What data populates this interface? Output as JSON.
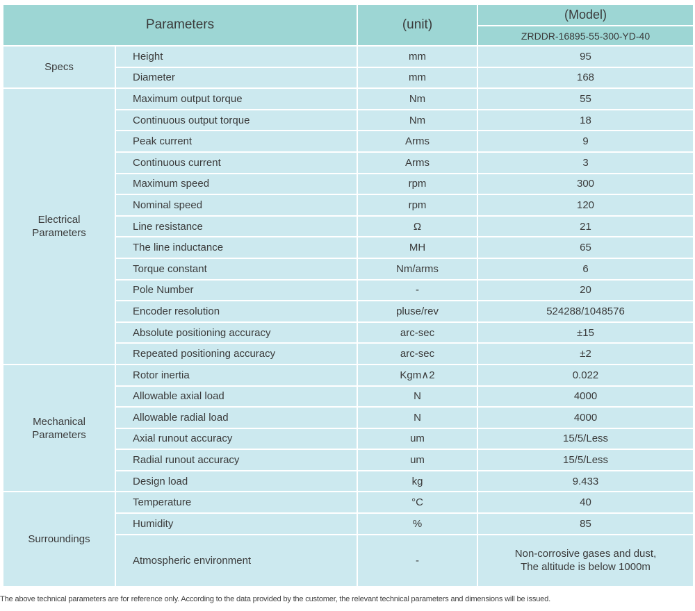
{
  "header": {
    "parameters": "Parameters",
    "unit": "(unit)",
    "model_label": "(Model)",
    "model": "ZRDDR-16895-55-300-YD-40"
  },
  "groups": [
    {
      "name": [
        "Specs"
      ],
      "rows": [
        {
          "parameter": "Height",
          "unit": "mm",
          "value": [
            "95"
          ]
        },
        {
          "parameter": "Diameter",
          "unit": "mm",
          "value": [
            "168"
          ]
        }
      ]
    },
    {
      "name": [
        "Electrical",
        "Parameters"
      ],
      "rows": [
        {
          "parameter": "Maximum output torque",
          "unit": "Nm",
          "value": [
            "55"
          ]
        },
        {
          "parameter": "Continuous output torque",
          "unit": "Nm",
          "value": [
            "18"
          ]
        },
        {
          "parameter": "Peak current",
          "unit": "Arms",
          "value": [
            "9"
          ]
        },
        {
          "parameter": "Continuous current",
          "unit": "Arms",
          "value": [
            "3"
          ]
        },
        {
          "parameter": "Maximum speed",
          "unit": "rpm",
          "value": [
            "300"
          ]
        },
        {
          "parameter": "Nominal speed",
          "unit": "rpm",
          "value": [
            "120"
          ]
        },
        {
          "parameter": "Line resistance",
          "unit": "Ω",
          "value": [
            "21"
          ]
        },
        {
          "parameter": "The line inductance",
          "unit": "MH",
          "value": [
            "65"
          ]
        },
        {
          "parameter": "Torque constant",
          "unit": "Nm/arms",
          "value": [
            "6"
          ]
        },
        {
          "parameter": "Pole Number",
          "unit": "-",
          "value": [
            "20"
          ]
        },
        {
          "parameter": "Encoder resolution",
          "unit": "pluse/rev",
          "value": [
            "524288/1048576"
          ]
        },
        {
          "parameter": "Absolute positioning accuracy",
          "unit": "arc-sec",
          "value": [
            "±15"
          ]
        },
        {
          "parameter": "Repeated positioning accuracy",
          "unit": "arc-sec",
          "value": [
            "±2"
          ]
        }
      ]
    },
    {
      "name": [
        "Mechanical",
        "Parameters"
      ],
      "rows": [
        {
          "parameter": "Rotor inertia",
          "unit": "Kgm∧2",
          "value": [
            "0.022"
          ]
        },
        {
          "parameter": "Allowable axial load",
          "unit": "N",
          "value": [
            "4000"
          ]
        },
        {
          "parameter": "Allowable radial load",
          "unit": "N",
          "value": [
            "4000"
          ]
        },
        {
          "parameter": "Axial runout accuracy",
          "unit": "um",
          "value": [
            "15/5/Less"
          ]
        },
        {
          "parameter": "Radial runout accuracy",
          "unit": "um",
          "value": [
            "15/5/Less"
          ]
        },
        {
          "parameter": "Design load",
          "unit": "kg",
          "value": [
            "9.433"
          ]
        }
      ]
    },
    {
      "name": [
        "Surroundings"
      ],
      "rows": [
        {
          "parameter": "Temperature",
          "unit": "°C",
          "value": [
            "40"
          ]
        },
        {
          "parameter": "Humidity",
          "unit": "%",
          "value": [
            "85"
          ]
        },
        {
          "parameter": "Atmospheric environment",
          "unit": "-",
          "value": [
            "Non-corrosive gases and dust,",
            "The altitude is below 1000m"
          ]
        }
      ]
    }
  ],
  "footnote": "The above technical parameters are for reference only. According to the data provided by the customer, the relevant technical parameters and dimensions will be issued."
}
